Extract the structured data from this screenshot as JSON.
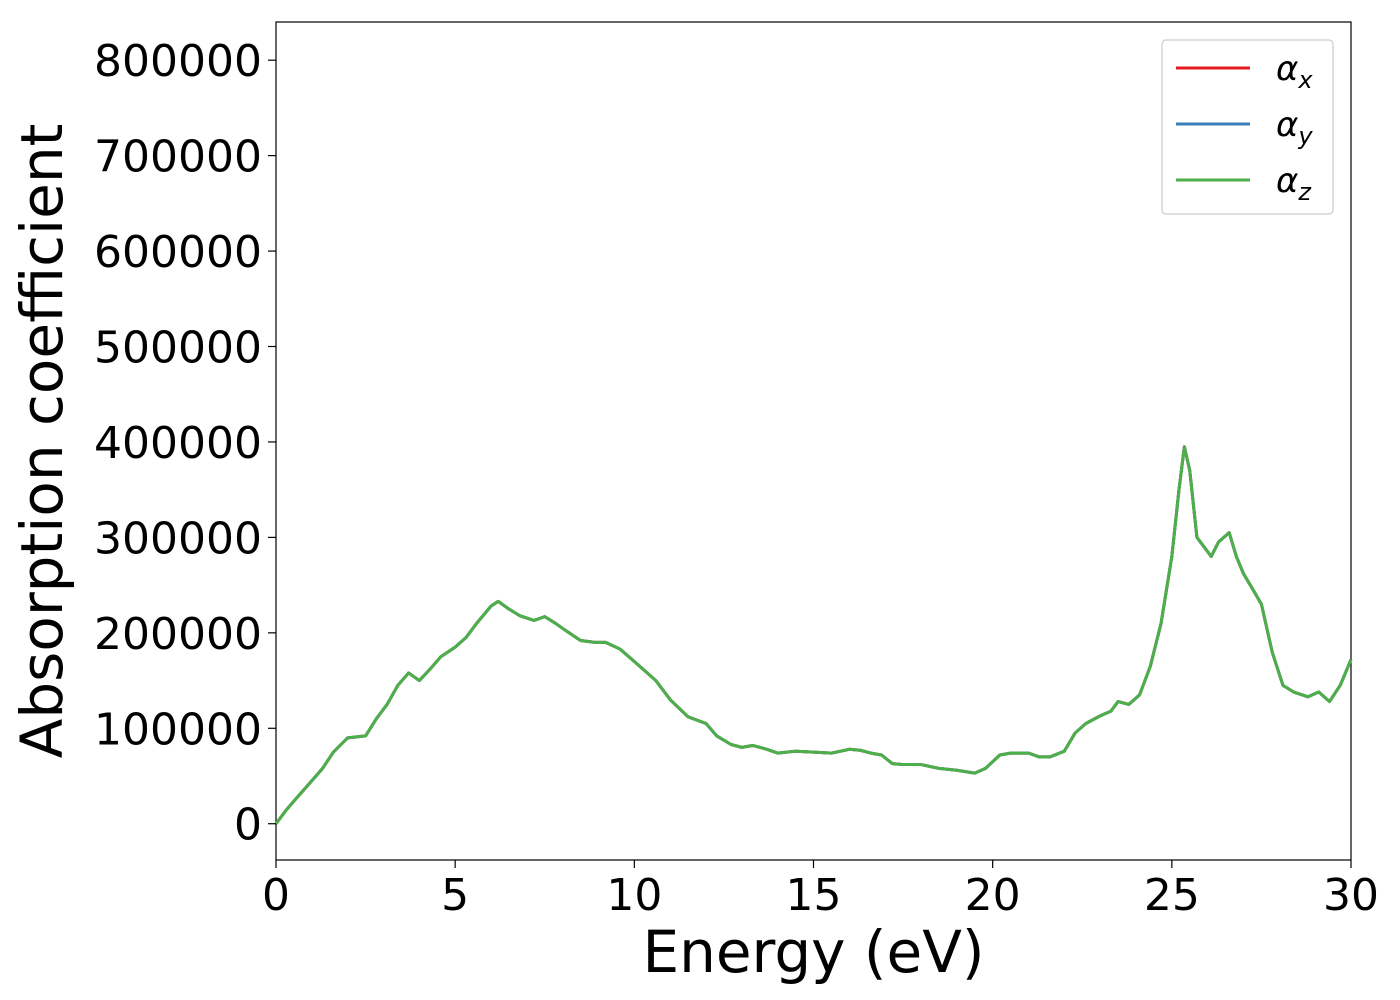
{
  "chart_data": {
    "type": "line",
    "xlabel": "Energy (eV)",
    "ylabel": "Absorption coefficient",
    "xlim": [
      0,
      30
    ],
    "ylim": [
      -38000,
      840000
    ],
    "xticks": [
      0,
      5,
      10,
      15,
      20,
      25,
      30
    ],
    "xtick_labels": [
      "0",
      "5",
      "10",
      "15",
      "20",
      "25",
      "30"
    ],
    "yticks": [
      0,
      100000,
      200000,
      300000,
      400000,
      500000,
      600000,
      700000,
      800000
    ],
    "ytick_labels": [
      "0",
      "100000",
      "200000",
      "300000",
      "400000",
      "500000",
      "600000",
      "700000",
      "800000"
    ],
    "grid": false,
    "legend_position": "top-right",
    "x": [
      0,
      0.3,
      0.6,
      1.0,
      1.3,
      1.6,
      2.0,
      2.5,
      2.8,
      3.1,
      3.4,
      3.7,
      4.0,
      4.3,
      4.6,
      5.0,
      5.3,
      5.6,
      6.0,
      6.2,
      6.5,
      6.8,
      7.2,
      7.5,
      7.8,
      8.1,
      8.5,
      8.9,
      9.2,
      9.6,
      10.0,
      10.3,
      10.6,
      11.0,
      11.5,
      12.0,
      12.3,
      12.7,
      13.0,
      13.3,
      13.7,
      14.0,
      14.5,
      15.0,
      15.5,
      16.0,
      16.3,
      16.6,
      16.9,
      17.2,
      17.5,
      18.0,
      18.5,
      19.0,
      19.5,
      19.8,
      20.2,
      20.5,
      21.0,
      21.3,
      21.6,
      22.0,
      22.3,
      22.6,
      23.0,
      23.3,
      23.5,
      23.8,
      24.1,
      24.4,
      24.7,
      25.0,
      25.2,
      25.35,
      25.5,
      25.7,
      25.9,
      26.1,
      26.3,
      26.6,
      26.8,
      27.0,
      27.3,
      27.5,
      27.8,
      28.1,
      28.4,
      28.8,
      29.1,
      29.4,
      29.7,
      30.0
    ],
    "series": [
      {
        "name": "α_x",
        "color": "#e41a1c",
        "values": [
          0,
          15000,
          28000,
          45000,
          58000,
          75000,
          90000,
          92000,
          110000,
          125000,
          145000,
          158000,
          150000,
          162000,
          175000,
          185000,
          195000,
          210000,
          228000,
          233000,
          225000,
          218000,
          213000,
          217000,
          210000,
          202000,
          192000,
          190000,
          190000,
          183000,
          170000,
          160000,
          150000,
          130000,
          112000,
          105000,
          92000,
          83000,
          80000,
          82000,
          78000,
          74000,
          76000,
          75000,
          74000,
          78000,
          77000,
          74000,
          72000,
          63000,
          62000,
          62000,
          58000,
          56000,
          53000,
          58000,
          72000,
          74000,
          74000,
          70000,
          70000,
          76000,
          95000,
          105000,
          113000,
          118000,
          128000,
          125000,
          135000,
          165000,
          210000,
          280000,
          350000,
          395000,
          370000,
          300000,
          290000,
          280000,
          295000,
          305000,
          280000,
          262000,
          243000,
          230000,
          180000,
          145000,
          138000,
          133000,
          138000,
          128000,
          145000,
          172000
        ]
      },
      {
        "name": "α_y",
        "color": "#377eb8",
        "values": [
          0,
          15000,
          28000,
          45000,
          58000,
          75000,
          90000,
          92000,
          110000,
          125000,
          145000,
          158000,
          150000,
          162000,
          175000,
          185000,
          195000,
          210000,
          228000,
          233000,
          225000,
          218000,
          213000,
          217000,
          210000,
          202000,
          192000,
          190000,
          190000,
          183000,
          170000,
          160000,
          150000,
          130000,
          112000,
          105000,
          92000,
          83000,
          80000,
          82000,
          78000,
          74000,
          76000,
          75000,
          74000,
          78000,
          77000,
          74000,
          72000,
          63000,
          62000,
          62000,
          58000,
          56000,
          53000,
          58000,
          72000,
          74000,
          74000,
          70000,
          70000,
          76000,
          95000,
          105000,
          113000,
          118000,
          128000,
          125000,
          135000,
          165000,
          210000,
          280000,
          350000,
          395000,
          370000,
          300000,
          290000,
          280000,
          295000,
          305000,
          280000,
          262000,
          243000,
          230000,
          180000,
          145000,
          138000,
          133000,
          138000,
          128000,
          145000,
          172000
        ]
      },
      {
        "name": "α_z",
        "color": "#4daf4a",
        "values": [
          0,
          15000,
          28000,
          45000,
          58000,
          75000,
          90000,
          92000,
          110000,
          125000,
          145000,
          158000,
          150000,
          162000,
          175000,
          185000,
          195000,
          210000,
          228000,
          233000,
          225000,
          218000,
          213000,
          217000,
          210000,
          202000,
          192000,
          190000,
          190000,
          183000,
          170000,
          160000,
          150000,
          130000,
          112000,
          105000,
          92000,
          83000,
          80000,
          82000,
          78000,
          74000,
          76000,
          75000,
          74000,
          78000,
          77000,
          74000,
          72000,
          63000,
          62000,
          62000,
          58000,
          56000,
          53000,
          58000,
          72000,
          74000,
          74000,
          70000,
          70000,
          76000,
          95000,
          105000,
          113000,
          118000,
          128000,
          125000,
          135000,
          165000,
          210000,
          280000,
          350000,
          395000,
          370000,
          300000,
          290000,
          280000,
          295000,
          305000,
          280000,
          262000,
          243000,
          230000,
          180000,
          145000,
          138000,
          133000,
          138000,
          128000,
          145000,
          172000
        ]
      }
    ],
    "legend": [
      {
        "symbol": "α",
        "sub": "x",
        "color": "#e41a1c"
      },
      {
        "symbol": "α",
        "sub": "y",
        "color": "#377eb8"
      },
      {
        "symbol": "α",
        "sub": "z",
        "color": "#4daf4a"
      }
    ]
  }
}
